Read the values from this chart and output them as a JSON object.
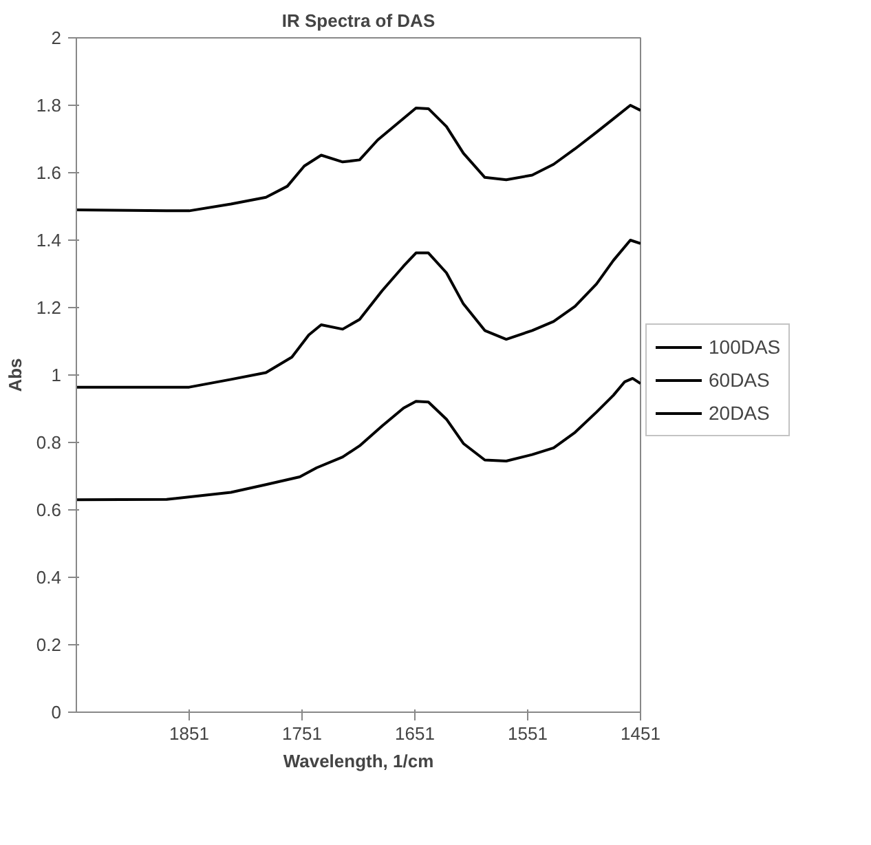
{
  "chart_data": {
    "type": "line",
    "title": "IR Spectra of DAS",
    "xlabel": "Wavelength, 1/cm",
    "ylabel": "Abs",
    "xlim": [
      1951,
      1451
    ],
    "xticks": [
      1851,
      1751,
      1651,
      1551,
      1451
    ],
    "ylim": [
      0,
      2
    ],
    "yticks": [
      0,
      0.2,
      0.4,
      0.6,
      0.8,
      1,
      1.2,
      1.4,
      1.6,
      1.8,
      2
    ],
    "legend": "right",
    "marker": "none",
    "line_style": "solid",
    "series": [
      {
        "name": "100DAS",
        "color": "#000000",
        "x": [
          1951,
          1871,
          1851,
          1814,
          1783,
          1764,
          1749,
          1734,
          1715,
          1700,
          1684,
          1665,
          1650,
          1639,
          1623,
          1608,
          1589,
          1570,
          1547,
          1528,
          1509,
          1490,
          1475,
          1460,
          1451
        ],
        "values": [
          1.49,
          1.487,
          1.487,
          1.507,
          1.527,
          1.56,
          1.62,
          1.652,
          1.632,
          1.638,
          1.697,
          1.75,
          1.792,
          1.79,
          1.737,
          1.658,
          1.586,
          1.579,
          1.593,
          1.625,
          1.671,
          1.72,
          1.76,
          1.8,
          1.785
        ]
      },
      {
        "name": "60DAS",
        "color": "#000000",
        "x": [
          1951,
          1871,
          1851,
          1814,
          1783,
          1760,
          1745,
          1734,
          1715,
          1700,
          1680,
          1661,
          1650,
          1639,
          1623,
          1608,
          1589,
          1570,
          1547,
          1528,
          1509,
          1490,
          1475,
          1460,
          1451
        ],
        "values": [
          0.964,
          0.964,
          0.964,
          0.987,
          1.007,
          1.053,
          1.119,
          1.149,
          1.136,
          1.165,
          1.25,
          1.323,
          1.362,
          1.362,
          1.303,
          1.211,
          1.132,
          1.106,
          1.132,
          1.159,
          1.204,
          1.27,
          1.34,
          1.4,
          1.39
        ]
      },
      {
        "name": "20DAS",
        "color": "#000000",
        "x": [
          1951,
          1871,
          1814,
          1783,
          1753,
          1738,
          1715,
          1700,
          1680,
          1661,
          1650,
          1639,
          1623,
          1608,
          1589,
          1570,
          1547,
          1528,
          1509,
          1490,
          1475,
          1465,
          1458,
          1451
        ],
        "values": [
          0.63,
          0.631,
          0.652,
          0.675,
          0.698,
          0.725,
          0.757,
          0.79,
          0.849,
          0.902,
          0.922,
          0.92,
          0.869,
          0.797,
          0.748,
          0.745,
          0.764,
          0.784,
          0.83,
          0.89,
          0.94,
          0.98,
          0.99,
          0.975
        ]
      }
    ]
  }
}
